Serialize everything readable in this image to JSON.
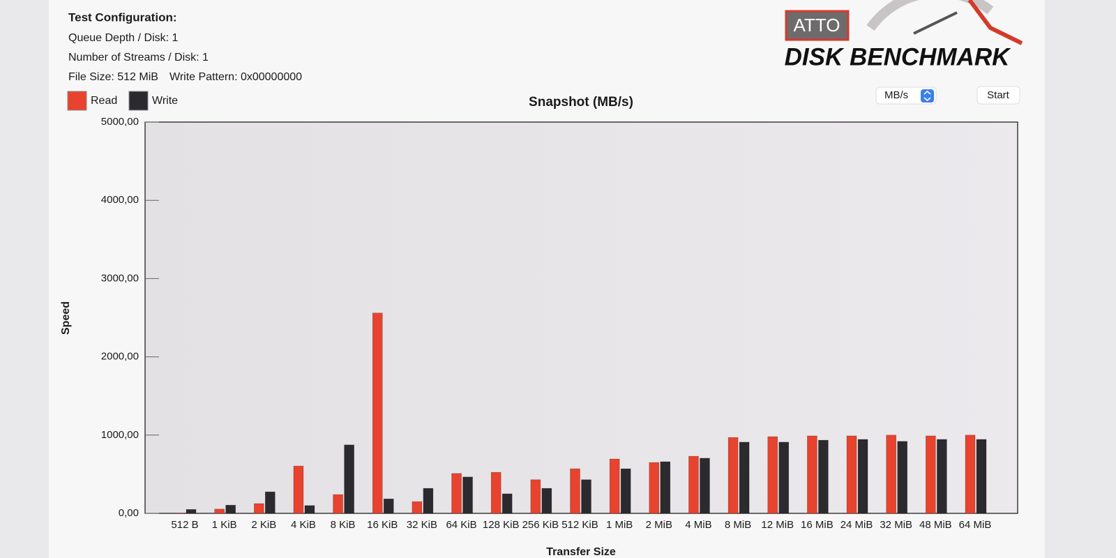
{
  "config": {
    "heading": "Test Configuration:",
    "queue_depth": "Queue Depth / Disk: 1",
    "streams": "Number of Streams / Disk: 1",
    "file_size": "File Size: 512 MiB",
    "write_pattern": "Write Pattern: 0x00000000"
  },
  "logo": {
    "brand": "ATTO",
    "product": "DISK BENCHMARK"
  },
  "controls": {
    "unit": "MB/s",
    "start": "Start"
  },
  "chart_data": {
    "type": "bar",
    "title": "Snapshot (MB/s)",
    "y_label": "Speed",
    "x_label": "Transfer Size",
    "categories": [
      "512 B",
      "1 KiB",
      "2 KiB",
      "4 KiB",
      "8 KiB",
      "16 KiB",
      "32 KiB",
      "64 KiB",
      "128 KiB",
      "256 KiB",
      "512 KiB",
      "1 MiB",
      "2 MiB",
      "4 MiB",
      "8 MiB",
      "12 MiB",
      "16 MiB",
      "24 MiB",
      "32 MiB",
      "48 MiB",
      "64 MiB"
    ],
    "series": [
      {
        "name": "Read",
        "color": "#e8432e",
        "values": [
          5,
          55,
          125,
          605,
          240,
          2560,
          150,
          510,
          525,
          430,
          570,
          695,
          650,
          730,
          970,
          980,
          990,
          990,
          1000,
          990,
          1000
        ]
      },
      {
        "name": "Write",
        "color": "#2b2a2e",
        "values": [
          50,
          105,
          275,
          100,
          875,
          185,
          320,
          465,
          250,
          320,
          430,
          570,
          660,
          705,
          910,
          910,
          935,
          945,
          920,
          945,
          945
        ]
      }
    ],
    "ylim": [
      0,
      5000
    ],
    "yticks": [
      {
        "value": 0,
        "label": "0,00"
      },
      {
        "value": 1000,
        "label": "1000,00"
      },
      {
        "value": 2000,
        "label": "2000,00"
      },
      {
        "value": 3000,
        "label": "3000,00"
      },
      {
        "value": 4000,
        "label": "4000,00"
      },
      {
        "value": 5000,
        "label": "5000,00"
      }
    ]
  }
}
